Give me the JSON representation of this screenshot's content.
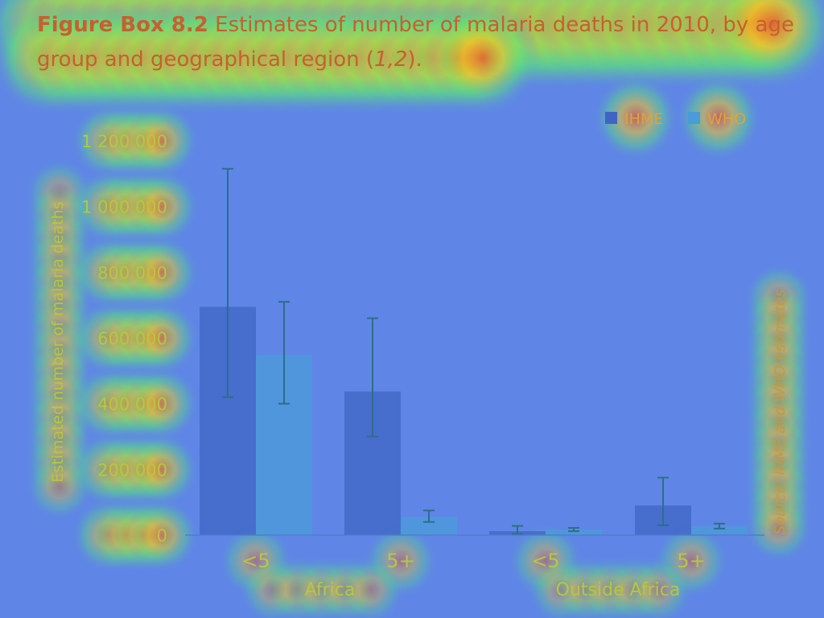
{
  "title": {
    "label": "Figure Box 8.2",
    "text_part1": " Estimates of number of malaria deaths in 2010, by age group and geographical region (",
    "refs": "1,2",
    "text_part2": ")."
  },
  "colors": {
    "IHME": "#3f64c4",
    "WHO": "#4b9bd8",
    "heat_background": "#5f86e6",
    "heat_hot": "#e8562e",
    "heat_text": "#c7602e",
    "error_bar": "#2c6e88"
  },
  "chart_data": {
    "type": "bar",
    "ylabel": "Estimated number of malaria deaths",
    "xlabel": "",
    "ylim": [
      0,
      1200000
    ],
    "yticks": [
      0,
      200000,
      400000,
      600000,
      800000,
      1000000,
      1200000
    ],
    "ytick_labels": [
      "0",
      "200 000",
      "400 000",
      "600 000",
      "800 000",
      "1 000 000",
      "1 200 000"
    ],
    "categories": [
      "<5",
      "5+",
      "<5",
      "5+"
    ],
    "groups": [
      {
        "name": "Africa",
        "categories": [
          "<5",
          "5+"
        ]
      },
      {
        "name": "Outside Africa",
        "categories": [
          "<5",
          "5+"
        ]
      }
    ],
    "series": [
      {
        "name": "IHME",
        "values": [
          695000,
          437000,
          12000,
          90000
        ],
        "error_low": [
          420000,
          300000,
          3000,
          30000
        ],
        "error_high": [
          1115000,
          660000,
          28000,
          175000
        ]
      },
      {
        "name": "WHO",
        "values": [
          548000,
          55000,
          17000,
          28000
        ],
        "error_low": [
          400000,
          40000,
          12000,
          20000
        ],
        "error_high": [
          710000,
          75000,
          22000,
          35000
        ]
      }
    ],
    "legend_position": "top-right",
    "source_note": "Source: IHME and WHO estimates",
    "grid": false
  }
}
